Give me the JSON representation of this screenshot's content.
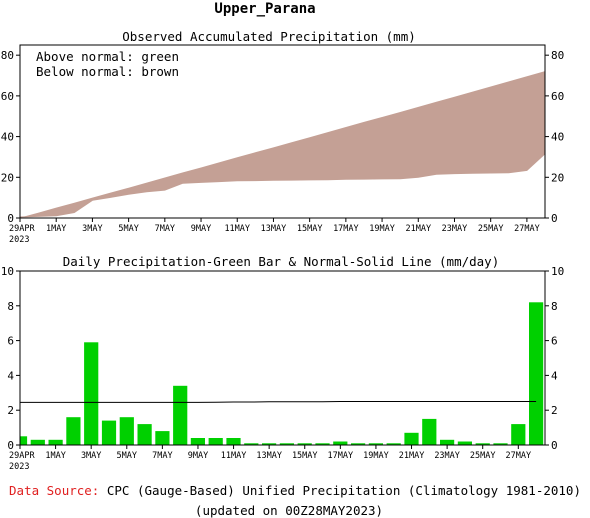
{
  "title": "Upper_Parana",
  "colors": {
    "normal_fill": "#c4a095",
    "observed_line": "#000000",
    "bar_green": "#00d000",
    "source_red": "#e02020"
  },
  "chart_data": [
    {
      "type": "area",
      "title": "Observed Accumulated Precipitation (mm)",
      "legend": [
        "Above normal: green",
        "Below normal: brown"
      ],
      "legend_placement": "top-left",
      "x": [
        "29APR",
        "30APR",
        "1MAY",
        "2MAY",
        "3MAY",
        "4MAY",
        "5MAY",
        "6MAY",
        "7MAY",
        "8MAY",
        "9MAY",
        "10MAY",
        "11MAY",
        "12MAY",
        "13MAY",
        "14MAY",
        "15MAY",
        "16MAY",
        "17MAY",
        "18MAY",
        "19MAY",
        "20MAY",
        "21MAY",
        "22MAY",
        "23MAY",
        "24MAY",
        "25MAY",
        "26MAY",
        "27MAY",
        "28MAY"
      ],
      "x_tick_labels": [
        "29APR",
        "1MAY",
        "3MAY",
        "5MAY",
        "7MAY",
        "9MAY",
        "11MAY",
        "13MAY",
        "15MAY",
        "17MAY",
        "19MAY",
        "21MAY",
        "23MAY",
        "25MAY",
        "27MAY"
      ],
      "x_year_label": "2023",
      "series": [
        {
          "role": "normal",
          "values": [
            0.2,
            2.6,
            5.1,
            7.5,
            10.0,
            12.5,
            14.9,
            17.4,
            19.9,
            22.4,
            24.8,
            27.3,
            29.8,
            32.3,
            34.7,
            37.2,
            39.7,
            42.2,
            44.7,
            47.2,
            49.6,
            52.1,
            54.6,
            57.1,
            59.6,
            62.1,
            64.6,
            67.1,
            69.6,
            72.2
          ]
        },
        {
          "role": "observed",
          "values": [
            0.5,
            0.8,
            1.1,
            2.7,
            8.7,
            10.1,
            11.7,
            12.9,
            13.7,
            17.1,
            17.5,
            17.9,
            18.3,
            18.4,
            18.5,
            18.6,
            18.7,
            18.8,
            19.0,
            19.1,
            19.2,
            19.3,
            20.0,
            21.5,
            21.8,
            22.0,
            22.1,
            22.2,
            23.4,
            31.6
          ]
        }
      ],
      "ylim": [
        0,
        85
      ],
      "y_ticks": [
        0,
        20,
        40,
        60,
        80
      ]
    },
    {
      "type": "bar",
      "title": "Daily Precipitation-Green Bar & Normal-Solid Line (mm/day)",
      "categories": [
        "29APR",
        "30APR",
        "1MAY",
        "2MAY",
        "3MAY",
        "4MAY",
        "5MAY",
        "6MAY",
        "7MAY",
        "8MAY",
        "9MAY",
        "10MAY",
        "11MAY",
        "12MAY",
        "13MAY",
        "14MAY",
        "15MAY",
        "16MAY",
        "17MAY",
        "18MAY",
        "19MAY",
        "20MAY",
        "21MAY",
        "22MAY",
        "23MAY",
        "24MAY",
        "25MAY",
        "26MAY",
        "27MAY",
        "28MAY"
      ],
      "x_tick_labels": [
        "29APR",
        "1MAY",
        "3MAY",
        "5MAY",
        "7MAY",
        "9MAY",
        "11MAY",
        "13MAY",
        "15MAY",
        "17MAY",
        "19MAY",
        "21MAY",
        "23MAY",
        "25MAY",
        "27MAY"
      ],
      "x_year_label": "2023",
      "values": [
        0.5,
        0.3,
        0.3,
        1.6,
        5.9,
        1.4,
        1.6,
        1.2,
        0.8,
        3.4,
        0.4,
        0.4,
        0.4,
        0.1,
        0.1,
        0.1,
        0.1,
        0.1,
        0.2,
        0.1,
        0.1,
        0.1,
        0.7,
        1.5,
        0.3,
        0.2,
        0.1,
        0.1,
        1.2,
        8.2
      ],
      "normal": [
        2.45,
        2.45,
        2.45,
        2.45,
        2.45,
        2.45,
        2.45,
        2.45,
        2.45,
        2.45,
        2.45,
        2.46,
        2.47,
        2.47,
        2.48,
        2.48,
        2.49,
        2.49,
        2.5,
        2.5,
        2.5,
        2.5,
        2.5,
        2.5,
        2.5,
        2.5,
        2.5,
        2.5,
        2.5,
        2.5
      ],
      "ylim": [
        0,
        10
      ],
      "y_ticks": [
        0,
        2,
        4,
        6,
        8,
        10
      ]
    }
  ],
  "footer": {
    "source_label": "Data Source:",
    "source_text": "CPC (Gauge-Based) Unified Precipitation (Climatology 1981-2010)",
    "updated": "(updated on 00Z28MAY2023)"
  }
}
